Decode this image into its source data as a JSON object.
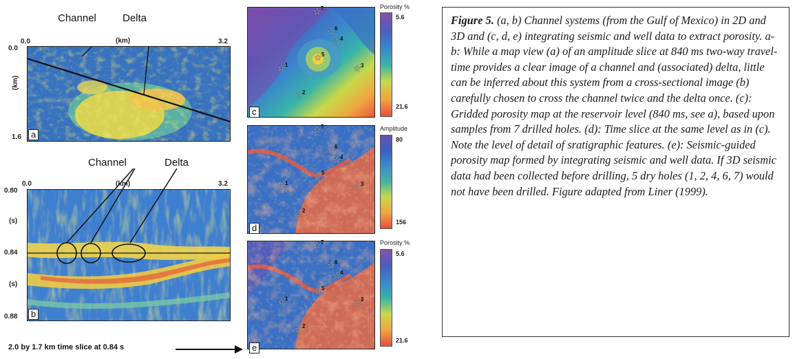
{
  "panel_a": {
    "letter": "a",
    "label_channel": "Channel",
    "label_delta": "Delta",
    "x_start": "0.0",
    "x_unit": "(km)",
    "x_end": "3.2",
    "y_top": "0.0",
    "y_unit": "(km)",
    "y_bottom": "1.6"
  },
  "panel_b": {
    "letter": "b",
    "label_channel": "Channel",
    "label_delta": "Delta",
    "x_start": "0.0",
    "x_unit": "(km)",
    "x_end": "3.2",
    "y_top": "0.80",
    "y_unit_1": "(s)",
    "y_mid": "0.84",
    "y_unit_2": "(s)",
    "y_bottom": "0.88"
  },
  "bottom_note": "2.0 by 1.7 km time slice at 0.84 s",
  "panel_c": {
    "letter": "c",
    "colorbar_title": "Porosity %",
    "colorbar_top": "5.6",
    "colorbar_bottom": "21.6",
    "well_labels": [
      "7",
      "6",
      "5",
      "4",
      "3",
      "1",
      "2"
    ]
  },
  "panel_d": {
    "letter": "d",
    "colorbar_title": "Amplitude",
    "colorbar_top": "80",
    "colorbar_bottom": "156",
    "well_labels": [
      "7",
      "6",
      "5",
      "4",
      "3",
      "1",
      "2"
    ]
  },
  "panel_e": {
    "letter": "e",
    "colorbar_title": "Porosity %",
    "colorbar_top": "5.6",
    "colorbar_bottom": "21.6",
    "well_labels": [
      "7",
      "6",
      "5",
      "4",
      "3",
      "1",
      "2"
    ]
  },
  "caption": {
    "figure_label": "Figure 5.",
    "text": "(a, b) Channel systems (from the Gulf of Mexico) in 2D and 3D and (c, d, e) integrating seismic and well data to extract porosity.  a-b: While a map view (a) of an amplitude slice at 840 ms two-way travel-time provides a clear image of a channel and (associated) delta, little can be inferred about this system from a cross-sectional image (b) carefully chosen to cross the channel twice and the delta once. (c): Gridded porosity map at the reservoir level (840 ms, see a), based upon samples from 7 drilled holes. (d): Time slice at the same level as in (c). Note the level of detail of sratigraphic features. (e): Seismic-guided porosity map formed by integrating seismic and well data. If 3D seismic data had been collected before drilling, 5 dry holes (1, 2, 4, 6, 7) would not have been drilled. Figure adapted from Liner (1999)."
  }
}
